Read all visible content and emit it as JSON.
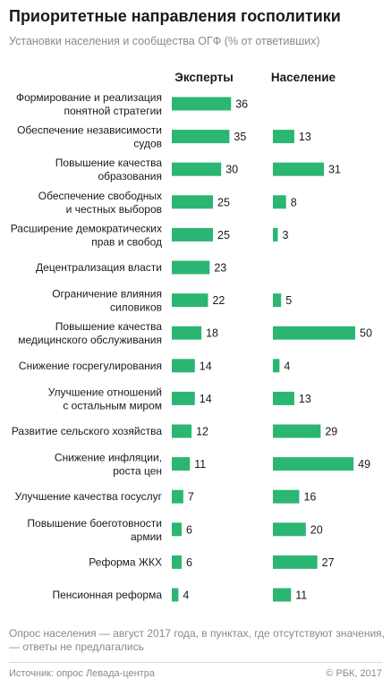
{
  "title": "Приоритетные направления госполитики",
  "subtitle": "Установки населения и сообщества ОГФ (% от ответивших)",
  "note": "Опрос населения — август 2017 года, в пунктах, где отсутствуют значения, — ответы не предлагались",
  "source": "Источник: опрос Левада-центра",
  "copyright": "© РБК, 2017",
  "colors": {
    "bar": "#2bb673",
    "muted": "#8a8a8a",
    "text": "#1a1a1a"
  },
  "chart_data": {
    "type": "bar",
    "orientation": "horizontal",
    "layout": "two-panel",
    "categories": [
      [
        "Формирование и реализация",
        "понятной стратегии"
      ],
      [
        "Обеспечение независимости",
        "судов"
      ],
      [
        "Повышение качества",
        "образования"
      ],
      [
        "Обеспечение свободных",
        "и честных выборов"
      ],
      [
        "Расширение демократических",
        "прав и свобод"
      ],
      [
        "Децентрализация власти"
      ],
      [
        "Ограничение влияния",
        "силовиков"
      ],
      [
        "Повышение качества",
        "медицинского обслуживания"
      ],
      [
        "Снижение госрегулирования"
      ],
      [
        "Улучшение отношений",
        "с остальным миром"
      ],
      [
        "Развитие сельского хозяйства"
      ],
      [
        "Снижение инфляции,",
        "роста цен"
      ],
      [
        "Улучшение качества госуслуг"
      ],
      [
        "Повышение боеготовности",
        "армии"
      ],
      [
        "Реформа ЖКХ"
      ],
      [
        "Пенсионная реформа"
      ]
    ],
    "series": [
      {
        "name": "Эксперты",
        "values": [
          36,
          35,
          30,
          25,
          25,
          23,
          22,
          18,
          14,
          14,
          12,
          11,
          7,
          6,
          6,
          4
        ]
      },
      {
        "name": "Население",
        "values": [
          null,
          13,
          31,
          8,
          3,
          null,
          5,
          50,
          4,
          13,
          29,
          49,
          16,
          20,
          27,
          11
        ]
      }
    ],
    "xlim": [
      0,
      50
    ],
    "grid": false
  }
}
